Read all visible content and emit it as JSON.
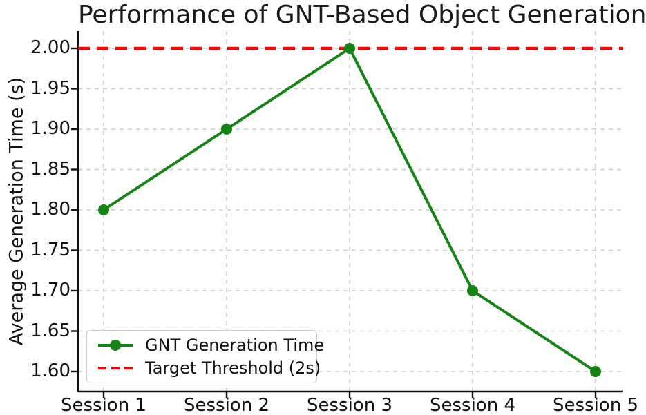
{
  "chart_data": {
    "type": "line",
    "title": "Performance of GNT-Based Object Generation",
    "xlabel": "",
    "ylabel": "Average Generation Time (s)",
    "categories": [
      "Session 1",
      "Session 2",
      "Session 3",
      "Session 4",
      "Session 5"
    ],
    "series": [
      {
        "name": "GNT Generation Time",
        "values": [
          1.8,
          1.9,
          2.0,
          1.7,
          1.6
        ],
        "color": "#148414",
        "marker": "circle",
        "line_style": "solid"
      }
    ],
    "threshold": {
      "label": "Target Threshold (2s)",
      "value": 2.0,
      "color": "#ff0000",
      "line_style": "dashed"
    },
    "yticks": [
      1.6,
      1.65,
      1.7,
      1.75,
      1.8,
      1.85,
      1.9,
      1.95,
      2.0
    ],
    "yticklabels": [
      "1.60",
      "1.65",
      "1.70",
      "1.75",
      "1.80",
      "1.85",
      "1.90",
      "1.95",
      "2.00"
    ],
    "ylim": [
      1.575,
      2.021
    ],
    "grid": true,
    "grid_color": "#cccccc",
    "axis_color": "#111111",
    "legend_position": "lower left",
    "legend_entries": [
      "GNT Generation Time",
      "Target Threshold (2s)"
    ]
  }
}
